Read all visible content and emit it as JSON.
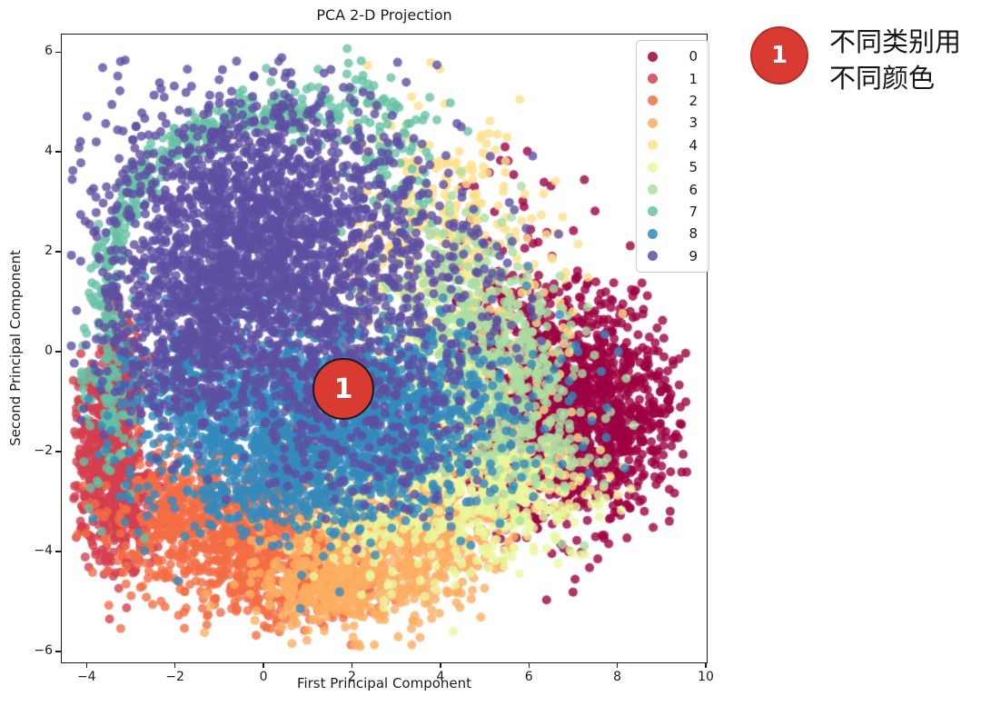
{
  "figure": {
    "title": "PCA 2-D Projection",
    "xlabel": "First Principal Component",
    "ylabel": "Second Principal Component"
  },
  "chart_data": {
    "type": "scatter",
    "title": "PCA 2-D Projection",
    "xlabel": "First Principal Component",
    "ylabel": "Second Principal Component",
    "xlim": [
      -4.56,
      10.02
    ],
    "ylim": [
      -6.22,
      6.35
    ],
    "xticks": [
      -4,
      -2,
      0,
      2,
      4,
      6,
      8,
      10
    ],
    "yticks": [
      -6,
      -4,
      -2,
      0,
      2,
      4,
      6
    ],
    "grid": false,
    "legend": {
      "position": "upper right",
      "labels": [
        "0",
        "1",
        "2",
        "3",
        "4",
        "5",
        "6",
        "7",
        "8",
        "9"
      ]
    },
    "marker": {
      "radius_px": 5,
      "alpha": 0.8
    },
    "clip": {
      "x": [
        -4.35,
        9.6
      ],
      "y": [
        -5.95,
        6.2
      ]
    },
    "series": [
      {
        "name": "0",
        "color": "#9e0142",
        "clusters": [
          {
            "cx": 7.1,
            "cy": -1.2,
            "sx": 1.05,
            "sy": 1.15,
            "n": 1200
          },
          {
            "cx": 5.7,
            "cy": -0.6,
            "sx": 0.75,
            "sy": 1.1,
            "n": 300
          },
          {
            "cx": 5.4,
            "cy": -2.6,
            "sx": 0.7,
            "sy": 0.5,
            "n": 120
          },
          {
            "cx": 5.4,
            "cy": 2.3,
            "sx": 0.8,
            "sy": 1.2,
            "n": 45
          },
          {
            "cx": 8.6,
            "cy": -1.0,
            "sx": 0.5,
            "sy": 0.8,
            "n": 60
          }
        ]
      },
      {
        "name": "1",
        "color": "#d53e4f",
        "clusters": [
          {
            "cx": -3.55,
            "cy": -2.0,
            "sx": 0.38,
            "sy": 1.05,
            "n": 600
          },
          {
            "cx": -3.0,
            "cy": -3.1,
            "sx": 0.45,
            "sy": 0.55,
            "n": 150
          },
          {
            "cx": -3.2,
            "cy": -0.4,
            "sx": 0.3,
            "sy": 0.5,
            "n": 80
          }
        ]
      },
      {
        "name": "2",
        "color": "#f46d43",
        "clusters": [
          {
            "cx": -0.6,
            "cy": -3.8,
            "sx": 1.4,
            "sy": 0.65,
            "n": 700
          },
          {
            "cx": 0.8,
            "cy": -4.7,
            "sx": 0.9,
            "sy": 0.45,
            "n": 200
          },
          {
            "cx": -2.0,
            "cy": -2.9,
            "sx": 0.6,
            "sy": 0.5,
            "n": 150
          },
          {
            "cx": 0.5,
            "cy": -2.6,
            "sx": 1.2,
            "sy": 0.5,
            "n": 60
          }
        ]
      },
      {
        "name": "3",
        "color": "#fdae61",
        "clusters": [
          {
            "cx": 2.4,
            "cy": -4.1,
            "sx": 1.2,
            "sy": 0.7,
            "n": 650
          },
          {
            "cx": 3.9,
            "cy": -3.3,
            "sx": 0.8,
            "sy": 0.6,
            "n": 250
          },
          {
            "cx": 1.3,
            "cy": -5.0,
            "sx": 0.7,
            "sy": 0.35,
            "n": 120
          }
        ]
      },
      {
        "name": "4",
        "color": "#fee08b",
        "clusters": [
          {
            "cx": 3.9,
            "cy": 3.0,
            "sx": 1.1,
            "sy": 1.1,
            "n": 220
          },
          {
            "cx": 5.6,
            "cy": 0.5,
            "sx": 0.9,
            "sy": 1.2,
            "n": 130
          },
          {
            "cx": 6.2,
            "cy": -2.4,
            "sx": 0.8,
            "sy": 0.5,
            "n": 80
          },
          {
            "cx": 2.7,
            "cy": 1.2,
            "sx": 0.8,
            "sy": 0.8,
            "n": 60
          }
        ]
      },
      {
        "name": "5",
        "color": "#eaf79e",
        "clusters": [
          {
            "cx": 4.3,
            "cy": -2.3,
            "sx": 0.95,
            "sy": 1.1,
            "n": 450
          },
          {
            "cx": 5.8,
            "cy": -3.0,
            "sx": 0.8,
            "sy": 0.55,
            "n": 160
          },
          {
            "cx": 3.4,
            "cy": 0.2,
            "sx": 0.8,
            "sy": 0.9,
            "n": 130
          },
          {
            "cx": 2.2,
            "cy": -3.4,
            "sx": 0.8,
            "sy": 0.5,
            "n": 80
          }
        ]
      },
      {
        "name": "6",
        "color": "#abdda4",
        "clusters": [
          {
            "cx": 4.9,
            "cy": -0.1,
            "sx": 0.75,
            "sy": 1.2,
            "n": 380
          },
          {
            "cx": 6.2,
            "cy": -1.2,
            "sx": 0.8,
            "sy": 1.0,
            "n": 170
          },
          {
            "cx": 3.9,
            "cy": 1.5,
            "sx": 0.8,
            "sy": 0.8,
            "n": 90
          }
        ]
      },
      {
        "name": "7",
        "color": "#66c2a5",
        "clusters": [
          {
            "type": "arc",
            "cx": 0.2,
            "cy": 1.3,
            "r": 3.75,
            "ky": 0.92,
            "a0": 78,
            "a1": 196,
            "jr": 0.22,
            "n": 330
          },
          {
            "cx": 1.8,
            "cy": 4.9,
            "sx": 1.0,
            "sy": 0.45,
            "n": 90
          },
          {
            "cx": -3.35,
            "cy": -1.0,
            "sx": 0.35,
            "sy": 0.9,
            "n": 110
          },
          {
            "cx": 3.0,
            "cy": 3.6,
            "sx": 0.7,
            "sy": 0.6,
            "n": 60
          }
        ]
      },
      {
        "name": "8",
        "color": "#3489bd",
        "clusters": [
          {
            "cx": 0.8,
            "cy": -1.5,
            "sx": 1.6,
            "sy": 0.95,
            "n": 1500
          },
          {
            "cx": 3.2,
            "cy": -1.1,
            "sx": 0.9,
            "sy": 0.8,
            "n": 300
          },
          {
            "cx": -1.6,
            "cy": -0.6,
            "sx": 0.8,
            "sy": 0.7,
            "n": 200
          },
          {
            "cx": 4.8,
            "cy": -1.2,
            "sx": 1.6,
            "sy": 1.0,
            "n": 140
          },
          {
            "cx": 0.5,
            "cy": -2.9,
            "sx": 1.5,
            "sy": 0.4,
            "n": 120
          }
        ]
      },
      {
        "name": "9",
        "color": "#5e4fa2",
        "clusters": [
          {
            "cx": 0.0,
            "cy": 2.2,
            "sx": 1.75,
            "sy": 1.45,
            "n": 2200
          },
          {
            "cx": -1.9,
            "cy": 0.3,
            "sx": 0.85,
            "sy": 0.95,
            "n": 300
          },
          {
            "cx": 1.3,
            "cy": -0.7,
            "sx": 1.7,
            "sy": 0.75,
            "n": 260
          },
          {
            "cx": 4.3,
            "cy": 1.1,
            "sx": 1.1,
            "sy": 1.1,
            "n": 130
          },
          {
            "cx": 2.9,
            "cy": -2.2,
            "sx": 1.2,
            "sy": 0.6,
            "n": 90
          }
        ]
      }
    ]
  },
  "annotations": {
    "plot_marker": {
      "label": "1",
      "fill": "#d93a31"
    },
    "callout": {
      "label": "1",
      "fill": "#d93a31",
      "text_lines": [
        "不同类别用",
        "不同颜色"
      ]
    }
  }
}
